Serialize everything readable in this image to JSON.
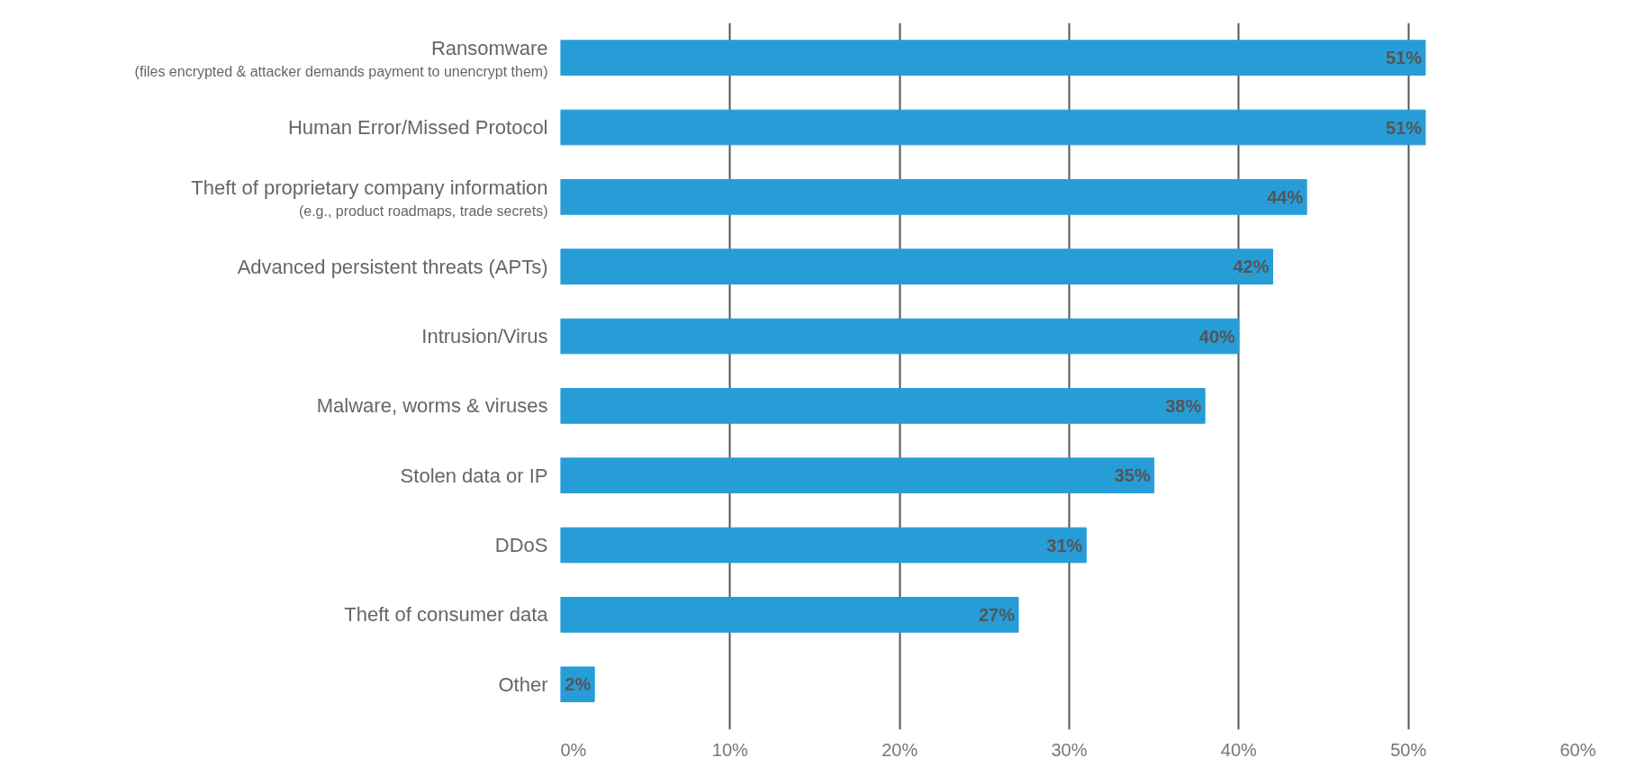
{
  "chart_data": {
    "type": "bar",
    "orientation": "horizontal",
    "categories": [
      "Ransomware\n(files encrypted & attacker demands payment to unencrypt them)",
      "Human Error/Missed Protocol",
      "Theft of proprietary company information\n(e.g., product roadmaps, trade secrets)",
      "Advanced persistent threats (APTs)",
      "Intrusion/Virus",
      "Malware, worms & viruses",
      "Stolen data or IP",
      "DDoS",
      "Theft of consumer data",
      "Other"
    ],
    "values": [
      51,
      51,
      44,
      42,
      40,
      38,
      35,
      31,
      27,
      2
    ],
    "value_labels": [
      "51%",
      "51%",
      "44%",
      "42%",
      "40%",
      "38%",
      "35%",
      "31%",
      "27%",
      "2%"
    ],
    "color": "#279dd8",
    "xlim": [
      0,
      60
    ],
    "xticks": [
      {
        "value": 0,
        "label": "0%"
      },
      {
        "value": 10,
        "label": "10%"
      },
      {
        "value": 20,
        "label": "20%"
      },
      {
        "value": 30,
        "label": "30%"
      },
      {
        "value": 40,
        "label": "40%"
      },
      {
        "value": 50,
        "label": "50%"
      },
      {
        "value": 60,
        "label": "60%"
      }
    ],
    "grid": "x"
  }
}
